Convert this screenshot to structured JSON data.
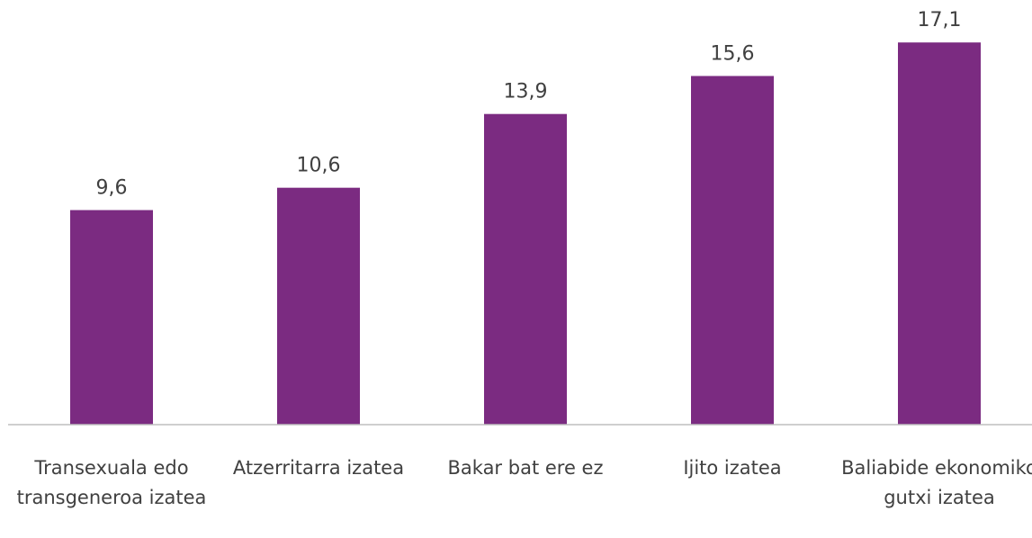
{
  "chart_data": {
    "type": "bar",
    "categories": [
      "Transexuala edo transgeneroa izatea",
      "Atzerritarra izatea",
      "Bakar bat ere ez",
      "Ijito izatea",
      "Baliabide ekonomiko gutxi izatea"
    ],
    "values": [
      9.6,
      10.6,
      13.9,
      15.6,
      17.1
    ],
    "value_labels": [
      "9,6",
      "10,6",
      "13,9",
      "15,6",
      "17,1"
    ],
    "color": "#7b2b81",
    "ylim": [
      0,
      19
    ]
  }
}
